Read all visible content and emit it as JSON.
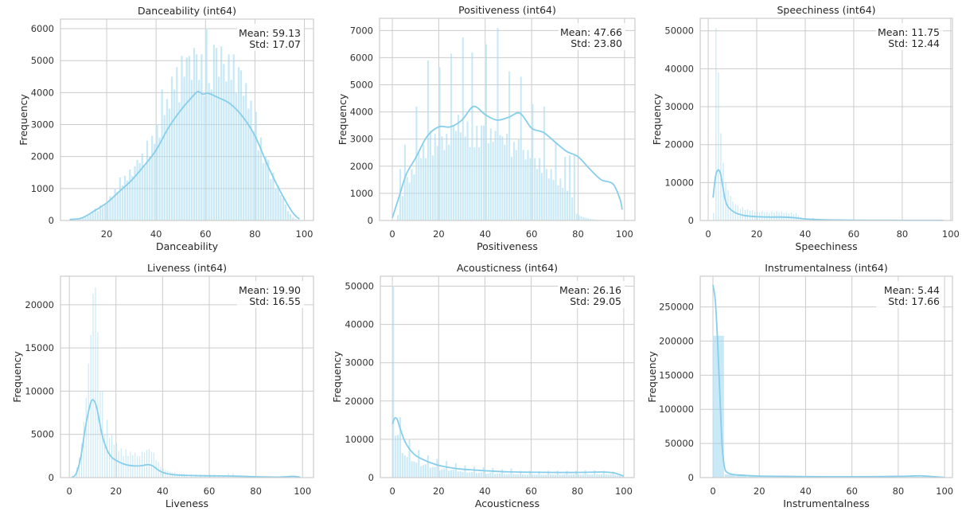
{
  "figure": {
    "bar_color": "#87CEEB",
    "kde_color": "#87CEEB",
    "grid_color": "#CCCCCC",
    "spine_color": "#CCCCCC",
    "ylabel": "Frequency"
  },
  "chart_data": [
    {
      "type": "bar",
      "title": "Danceability (int64)",
      "xlabel": "Danceability",
      "ylabel": "Frequency",
      "annotation": {
        "mean": "Mean: 59.13",
        "std": "Std: 17.07"
      },
      "xlim": [
        1.3,
        103.7
      ],
      "ylim": [
        0,
        6300
      ],
      "xticks": [
        20,
        40,
        60,
        80,
        100
      ],
      "yticks": [
        0,
        1000,
        2000,
        3000,
        4000,
        5000,
        6000
      ],
      "grid": true,
      "bin_width": 1,
      "bins_x0": [
        5,
        6,
        7,
        8,
        9,
        10,
        11,
        12,
        13,
        14,
        15,
        16,
        17,
        18,
        19,
        20,
        21,
        22,
        23,
        24,
        25,
        26,
        27,
        28,
        29,
        30,
        31,
        32,
        33,
        34,
        35,
        36,
        37,
        38,
        39,
        40,
        41,
        42,
        43,
        44,
        45,
        46,
        47,
        48,
        49,
        50,
        51,
        52,
        53,
        54,
        55,
        56,
        57,
        58,
        59,
        60,
        61,
        62,
        63,
        64,
        65,
        66,
        67,
        68,
        69,
        70,
        71,
        72,
        73,
        74,
        75,
        76,
        77,
        78,
        79,
        80,
        81,
        82,
        83,
        84,
        85,
        86,
        87,
        88,
        89,
        90,
        91,
        92,
        93,
        94,
        95,
        96,
        97,
        98
      ],
      "values": [
        20,
        30,
        40,
        50,
        60,
        80,
        100,
        150,
        200,
        250,
        380,
        300,
        480,
        420,
        500,
        600,
        760,
        700,
        1000,
        900,
        1350,
        1100,
        1400,
        1250,
        1600,
        1400,
        1700,
        1900,
        1800,
        2100,
        1700,
        2500,
        2000,
        2650,
        2400,
        3000,
        2600,
        4100,
        3300,
        3800,
        3500,
        4500,
        4100,
        4800,
        3700,
        5150,
        4500,
        5100,
        5150,
        4400,
        5400,
        5200,
        4400,
        5200,
        3900,
        6000,
        4300,
        4100,
        5500,
        5400,
        4500,
        5450,
        4900,
        4350,
        5200,
        4400,
        5200,
        4000,
        4800,
        4700,
        3900,
        4300,
        3500,
        3750,
        2800,
        3400,
        2200,
        2600,
        1800,
        2000,
        1900,
        1300,
        1500,
        1000,
        1100,
        800,
        700,
        500,
        300,
        200,
        100,
        50,
        20,
        10
      ],
      "kde": {
        "x": [
          5,
          10,
          15,
          20,
          25,
          30,
          35,
          40,
          45,
          50,
          55,
          57,
          59,
          61,
          65,
          70,
          75,
          80,
          85,
          90,
          95,
          98
        ],
        "y": [
          30,
          80,
          300,
          550,
          900,
          1250,
          1700,
          2200,
          2900,
          3450,
          3900,
          4030,
          3950,
          3980,
          3850,
          3650,
          3250,
          2650,
          1750,
          950,
          280,
          40
        ]
      }
    },
    {
      "type": "bar",
      "title": "Positiveness (int64)",
      "xlabel": "Positiveness",
      "ylabel": "Frequency",
      "annotation": {
        "mean": "Mean: 47.66",
        "std": "Std: 23.80"
      },
      "xlim": [
        -5.5,
        104.5
      ],
      "ylim": [
        0,
        7450
      ],
      "xticks": [
        0,
        20,
        40,
        60,
        80,
        100
      ],
      "yticks": [
        0,
        1000,
        2000,
        3000,
        4000,
        5000,
        6000,
        7000
      ],
      "grid": true,
      "bin_width": 1,
      "bins_x0": [
        2,
        3,
        4,
        5,
        6,
        7,
        8,
        9,
        10,
        11,
        12,
        13,
        14,
        15,
        16,
        17,
        18,
        19,
        20,
        21,
        22,
        23,
        24,
        25,
        26,
        27,
        28,
        29,
        30,
        31,
        32,
        33,
        34,
        35,
        36,
        37,
        38,
        39,
        40,
        41,
        42,
        43,
        44,
        45,
        46,
        47,
        48,
        49,
        50,
        51,
        52,
        53,
        54,
        55,
        56,
        57,
        58,
        59,
        60,
        61,
        62,
        63,
        64,
        65,
        66,
        67,
        68,
        69,
        70,
        71,
        72,
        73,
        74,
        75,
        76,
        77,
        78,
        79,
        80,
        81,
        82,
        83,
        84,
        85,
        86,
        87,
        88,
        89,
        90,
        91,
        92,
        93,
        94,
        95,
        96,
        97,
        98
      ],
      "values": [
        200,
        1900,
        900,
        2800,
        1600,
        1400,
        1900,
        1700,
        4200,
        2500,
        2300,
        2800,
        2300,
        5900,
        3300,
        2400,
        3200,
        2750,
        5650,
        3100,
        2600,
        3200,
        2800,
        6150,
        3500,
        3300,
        3900,
        3250,
        6750,
        3100,
        3650,
        2700,
        6200,
        2700,
        3500,
        2700,
        3500,
        3500,
        6500,
        2850,
        3400,
        2900,
        3300,
        7100,
        3150,
        3100,
        2800,
        3200,
        5500,
        2350,
        2900,
        2600,
        3000,
        5300,
        2600,
        2250,
        2600,
        2300,
        4300,
        2300,
        1900,
        2300,
        1750,
        4200,
        1900,
        1550,
        1900,
        1500,
        2850,
        1300,
        1550,
        1200,
        2350,
        1100,
        2400,
        850,
        2400,
        250,
        200,
        150,
        120,
        100,
        80,
        60,
        50,
        40,
        30,
        20,
        10,
        10,
        10,
        5,
        5,
        5,
        5,
        5,
        5
      ],
      "kde": {
        "x": [
          0,
          3,
          6,
          10,
          15,
          20,
          25,
          30,
          35,
          40,
          45,
          50,
          55,
          60,
          65,
          70,
          75,
          80,
          85,
          90,
          95,
          98,
          99
        ],
        "y": [
          100,
          900,
          1700,
          2300,
          3100,
          3450,
          3450,
          3700,
          4200,
          3900,
          3700,
          3800,
          3950,
          3400,
          3250,
          2900,
          2550,
          2350,
          1900,
          1500,
          1350,
          800,
          400
        ]
      }
    },
    {
      "type": "bar",
      "title": "Speechiness (int64)",
      "xlabel": "Speechiness",
      "ylabel": "Frequency",
      "annotation": {
        "mean": "Mean: 11.75",
        "std": "Std: 12.44"
      },
      "xlim": [
        -3.3,
        100.7
      ],
      "ylim": [
        0,
        53300
      ],
      "xticks": [
        0,
        20,
        40,
        60,
        80,
        100
      ],
      "yticks": [
        0,
        10000,
        20000,
        30000,
        40000,
        50000
      ],
      "grid": true,
      "bin_width": 0.5,
      "bins_x0": [
        2,
        3,
        4,
        5,
        6,
        7,
        8,
        9,
        10,
        11,
        12,
        13,
        14,
        15,
        16,
        17,
        18,
        19,
        20,
        21,
        22,
        23,
        24,
        25,
        26,
        27,
        28,
        29,
        30,
        31,
        32,
        33,
        34,
        35,
        36,
        37,
        38,
        39,
        40,
        41,
        42,
        43,
        44,
        45,
        46,
        47,
        48,
        49,
        50
      ],
      "values": [
        2000,
        50700,
        39000,
        23000,
        15200,
        10200,
        8000,
        6500,
        5000,
        4300,
        4000,
        3000,
        3500,
        2800,
        3000,
        2600,
        2700,
        2300,
        2400,
        2200,
        2500,
        2200,
        2300,
        2000,
        2400,
        2100,
        2500,
        2200,
        2400,
        2000,
        2200,
        1900,
        2100,
        1700,
        2000,
        1300,
        900,
        700,
        600,
        500,
        450,
        700,
        300,
        250,
        200,
        150,
        120,
        100,
        80
      ],
      "kde": {
        "x": [
          2,
          3,
          4,
          5,
          6,
          7,
          8,
          10,
          12,
          15,
          20,
          25,
          30,
          35,
          40,
          45,
          50,
          60,
          70,
          80,
          90,
          97
        ],
        "y": [
          6000,
          11500,
          13300,
          12500,
          9000,
          5500,
          3800,
          2500,
          1800,
          1300,
          1000,
          900,
          900,
          750,
          400,
          250,
          150,
          80,
          50,
          30,
          20,
          10
        ]
      }
    },
    {
      "type": "bar",
      "title": "Liveness (int64)",
      "xlabel": "Liveness",
      "ylabel": "Frequency",
      "annotation": {
        "mean": "Mean: 19.90",
        "std": "Std: 16.55"
      },
      "xlim": [
        -3.8,
        104.7
      ],
      "ylim": [
        0,
        23300
      ],
      "xticks": [
        0,
        20,
        40,
        60,
        80,
        100
      ],
      "yticks": [
        0,
        5000,
        10000,
        15000,
        20000
      ],
      "grid": true,
      "bin_width": 0.5,
      "bins_x0": [
        3,
        4,
        5,
        6,
        7,
        8,
        9,
        10,
        11,
        12,
        13,
        14,
        15,
        16,
        17,
        18,
        19,
        20,
        21,
        22,
        23,
        24,
        25,
        26,
        27,
        28,
        29,
        30,
        31,
        32,
        33,
        34,
        35,
        36,
        37,
        38,
        39,
        40,
        41,
        42,
        43,
        44,
        45,
        46,
        47,
        48,
        49,
        50,
        52,
        54,
        56,
        58,
        60,
        62,
        64,
        66,
        68,
        70,
        72,
        75,
        80,
        85,
        90,
        95,
        98
      ],
      "values": [
        1200,
        2300,
        4000,
        6500,
        9200,
        13200,
        16500,
        21300,
        22000,
        16800,
        10000,
        10000,
        5000,
        6700,
        4600,
        4900,
        3800,
        4000,
        3100,
        3400,
        2500,
        3300,
        2500,
        3000,
        2600,
        2900,
        2500,
        2500,
        3000,
        2900,
        3200,
        3300,
        3000,
        2900,
        2000,
        1800,
        1200,
        1000,
        900,
        800,
        700,
        600,
        600,
        500,
        500,
        450,
        450,
        400,
        400,
        400,
        350,
        350,
        350,
        350,
        300,
        300,
        500,
        500,
        200,
        150,
        100,
        80,
        80,
        150,
        100
      ],
      "kde": {
        "x": [
          1,
          3,
          5,
          7,
          9,
          10,
          11,
          12,
          14,
          16,
          18,
          20,
          23,
          26,
          30,
          34,
          36,
          38,
          40,
          43,
          46,
          50,
          60,
          70,
          80,
          90,
          96,
          99
        ],
        "y": [
          0,
          500,
          2500,
          6000,
          8500,
          9000,
          8700,
          7800,
          5000,
          3300,
          2400,
          2000,
          1600,
          1400,
          1350,
          1500,
          1300,
          900,
          600,
          400,
          300,
          250,
          200,
          180,
          100,
          60,
          150,
          50
        ]
      }
    },
    {
      "type": "bar",
      "title": "Acousticness (int64)",
      "xlabel": "Acousticness",
      "ylabel": "Frequency",
      "annotation": {
        "mean": "Mean: 26.16",
        "std": "Std: 29.05"
      },
      "xlim": [
        -5.2,
        104.5
      ],
      "ylim": [
        0,
        52600
      ],
      "xticks": [
        0,
        20,
        40,
        60,
        80,
        100
      ],
      "yticks": [
        0,
        10000,
        20000,
        30000,
        40000,
        50000
      ],
      "grid": true,
      "bin_width": 1,
      "bins_x0": [
        0,
        1,
        2,
        3,
        4,
        5,
        6,
        7,
        8,
        9,
        10,
        11,
        12,
        13,
        14,
        15,
        16,
        17,
        18,
        19,
        20,
        21,
        22,
        23,
        24,
        25,
        26,
        27,
        28,
        29,
        30,
        31,
        32,
        33,
        34,
        35,
        36,
        37,
        38,
        39,
        40,
        41,
        42,
        43,
        44,
        45,
        46,
        47,
        48,
        49,
        50,
        51,
        52,
        53,
        54,
        55,
        56,
        57,
        58,
        59,
        60,
        61,
        62,
        63,
        64,
        65,
        66,
        67,
        68,
        69,
        70,
        71,
        72,
        73,
        74,
        75,
        76,
        77,
        78,
        79,
        80,
        81,
        82,
        83,
        84,
        85,
        86,
        87,
        88,
        89,
        90,
        91,
        92,
        93,
        94,
        95,
        96,
        97,
        98,
        99
      ],
      "values": [
        50000,
        11000,
        11200,
        15800,
        6400,
        5800,
        5400,
        10000,
        4300,
        4200,
        3900,
        7200,
        3000,
        3300,
        3500,
        5800,
        2600,
        2800,
        2800,
        4900,
        1900,
        2200,
        2400,
        4300,
        1800,
        2000,
        2100,
        3800,
        1600,
        1700,
        1500,
        3200,
        1300,
        1400,
        1500,
        2900,
        1200,
        1300,
        1400,
        2700,
        1000,
        1100,
        1300,
        2500,
        1000,
        1100,
        1100,
        2200,
        1000,
        900,
        1000,
        2400,
        1000,
        900,
        900,
        1800,
        900,
        800,
        800,
        1800,
        900,
        800,
        800,
        1700,
        800,
        800,
        800,
        1800,
        900,
        800,
        800,
        1800,
        800,
        800,
        900,
        1800,
        800,
        800,
        900,
        1800,
        900,
        800,
        900,
        1900,
        900,
        800,
        900,
        1900,
        900,
        800,
        900,
        1800,
        900,
        800,
        900,
        1600,
        700,
        600,
        500,
        300
      ],
      "kde": {
        "x": [
          0,
          1,
          2,
          3,
          5,
          7,
          10,
          13,
          16,
          20,
          25,
          30,
          35,
          40,
          50,
          60,
          70,
          80,
          90,
          93,
          96,
          98,
          100
        ],
        "y": [
          14000,
          15500,
          15300,
          13500,
          10000,
          7800,
          5800,
          4800,
          4000,
          3200,
          2600,
          2200,
          2000,
          1800,
          1500,
          1400,
          1350,
          1350,
          1450,
          1400,
          1200,
          800,
          400
        ]
      }
    },
    {
      "type": "bar",
      "title": "Instrumentalness (int64)",
      "xlabel": "Instrumentalness",
      "ylabel": "Frequency",
      "annotation": {
        "mean": "Mean: 5.44",
        "std": "Std: 17.66"
      },
      "xlim": [
        -5.5,
        103.4
      ],
      "ylim": [
        0,
        295000
      ],
      "xticks": [
        0,
        20,
        40,
        60,
        80,
        100
      ],
      "yticks": [
        0,
        50000,
        100000,
        150000,
        200000,
        250000
      ],
      "grid": true,
      "bin_width": 5,
      "bins_x0": [
        0,
        5,
        10,
        15,
        20,
        25,
        30,
        35,
        40,
        45,
        50,
        55,
        60,
        65,
        70,
        75,
        80,
        85,
        90,
        95
      ],
      "values": [
        208000,
        5000,
        3500,
        2500,
        2000,
        1500,
        1200,
        1000,
        900,
        900,
        800,
        800,
        800,
        900,
        900,
        1000,
        1200,
        1500,
        2000,
        600
      ],
      "kde": {
        "x": [
          0,
          1,
          2,
          3,
          4,
          5,
          6,
          8,
          10,
          15,
          20,
          30,
          40,
          50,
          60,
          70,
          80,
          85,
          90,
          95,
          100
        ],
        "y": [
          282000,
          260000,
          200000,
          120000,
          45000,
          15000,
          8000,
          5000,
          4000,
          3000,
          2200,
          1800,
          1500,
          1300,
          1300,
          1400,
          1800,
          2200,
          2600,
          1500,
          300
        ]
      }
    }
  ]
}
